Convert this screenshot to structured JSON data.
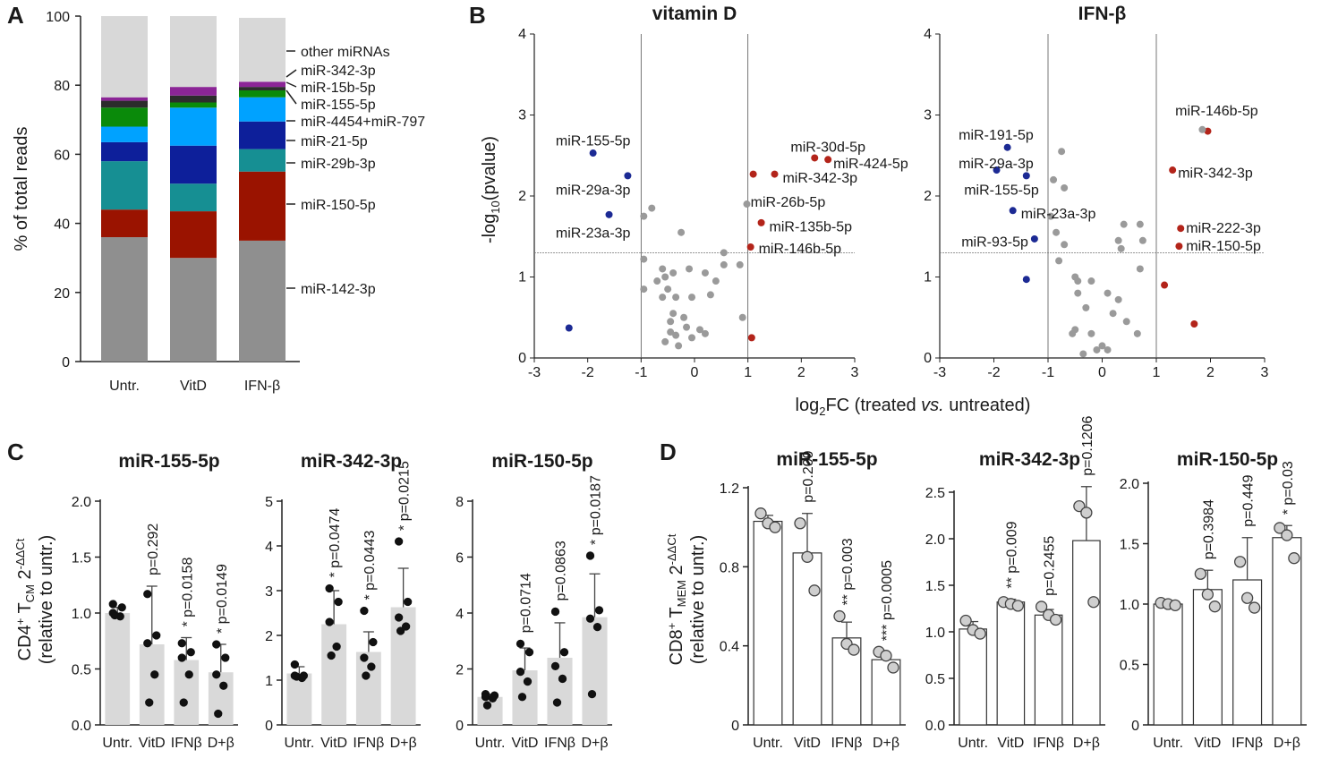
{
  "panel_letters": [
    "A",
    "B",
    "C",
    "D"
  ],
  "colors": {
    "other": "#d8d8d8",
    "mir342": "#8b2596",
    "mir15b": "#2c2c2c",
    "mir155": "#0a8a0a",
    "mir4454": "#00a2ff",
    "mir21": "#0d1f9a",
    "mir29b": "#168f93",
    "mir150": "#9a1300",
    "mir142": "#8f8f8f",
    "red_dot": "#b3241a",
    "blue_dot": "#1c2a94",
    "grey_dot": "#9a9a9a",
    "bar_c": "#d9d9d9",
    "bar_d": "#ffffff"
  },
  "chart_data": [
    {
      "id": "A",
      "type": "bar",
      "stacked": true,
      "ylabel": "% of total reads",
      "ylim": [
        0,
        100
      ],
      "yticks": [
        0,
        20,
        40,
        60,
        80,
        100
      ],
      "categories": [
        "Untr.",
        "VitD",
        "IFN-β"
      ],
      "series": [
        {
          "name": "miR-142-3p",
          "color_key": "mir142",
          "values": [
            36,
            30,
            35
          ]
        },
        {
          "name": "miR-150-5p",
          "color_key": "mir150",
          "values": [
            8,
            13.5,
            20
          ]
        },
        {
          "name": "miR-29b-3p",
          "color_key": "mir29b",
          "values": [
            14,
            8,
            6.5
          ]
        },
        {
          "name": "miR-21-5p",
          "color_key": "mir21",
          "values": [
            5.5,
            11,
            8
          ]
        },
        {
          "name": "miR-4454+miR-797",
          "color_key": "mir4454",
          "values": [
            4.5,
            11,
            7
          ]
        },
        {
          "name": "miR-155-5p",
          "color_key": "mir155",
          "values": [
            5.5,
            1.5,
            2
          ]
        },
        {
          "name": "miR-15b-5p",
          "color_key": "mir15b",
          "values": [
            2,
            2,
            1
          ]
        },
        {
          "name": "miR-342-3p",
          "color_key": "mir342",
          "values": [
            1,
            2.5,
            1.5
          ]
        },
        {
          "name": "other miRNAs",
          "color_key": "other",
          "values": [
            23.5,
            20.5,
            18.5
          ]
        }
      ],
      "legend_order": [
        "other miRNAs",
        "miR-342-3p",
        "miR-15b-5p",
        "miR-155-5p",
        "miR-4454+miR-797",
        "miR-21-5p",
        "miR-29b-3p",
        "miR-150-5p",
        "miR-142-3p"
      ]
    },
    {
      "id": "B1",
      "type": "scatter",
      "title": "vitamin D",
      "xlabel_parts": [
        "log",
        "2",
        "FC (treated ",
        "vs.",
        " untreated)"
      ],
      "ylabel_parts": [
        "-log",
        "10",
        "(pvalue)"
      ],
      "xlim": [
        -3,
        3
      ],
      "ylim": [
        0,
        4
      ],
      "xticks": [
        -3,
        -2,
        -1,
        0,
        1,
        2,
        3
      ],
      "yticks": [
        0,
        1,
        2,
        3,
        4
      ],
      "vlines": [
        -1,
        1
      ],
      "hline": 1.3,
      "points": [
        {
          "x": -1.9,
          "y": 2.53,
          "c": "blue"
        },
        {
          "x": -1.25,
          "y": 2.25,
          "c": "blue"
        },
        {
          "x": -1.6,
          "y": 1.77,
          "c": "blue"
        },
        {
          "x": -2.35,
          "y": 0.37,
          "c": "blue"
        },
        {
          "x": 2.25,
          "y": 2.47,
          "c": "red"
        },
        {
          "x": 2.5,
          "y": 2.45,
          "c": "red"
        },
        {
          "x": 1.5,
          "y": 2.27,
          "c": "red"
        },
        {
          "x": 1.1,
          "y": 2.27,
          "c": "red"
        },
        {
          "x": 1.25,
          "y": 1.67,
          "c": "red"
        },
        {
          "x": 1.05,
          "y": 1.37,
          "c": "red"
        },
        {
          "x": 1.07,
          "y": 0.25,
          "c": "red"
        },
        {
          "x": 0.98,
          "y": 1.9,
          "c": "grey"
        },
        {
          "x": -0.8,
          "y": 1.85,
          "c": "grey"
        },
        {
          "x": -0.95,
          "y": 1.75,
          "c": "grey"
        },
        {
          "x": -0.25,
          "y": 1.55,
          "c": "grey"
        },
        {
          "x": -0.95,
          "y": 1.22,
          "c": "grey"
        },
        {
          "x": -0.6,
          "y": 1.1,
          "c": "grey"
        },
        {
          "x": -0.55,
          "y": 1.0,
          "c": "grey"
        },
        {
          "x": -0.7,
          "y": 0.95,
          "c": "grey"
        },
        {
          "x": -0.4,
          "y": 1.05,
          "c": "grey"
        },
        {
          "x": -0.1,
          "y": 1.1,
          "c": "grey"
        },
        {
          "x": 0.2,
          "y": 1.05,
          "c": "grey"
        },
        {
          "x": 0.55,
          "y": 1.3,
          "c": "grey"
        },
        {
          "x": 0.55,
          "y": 1.15,
          "c": "grey"
        },
        {
          "x": 0.85,
          "y": 1.15,
          "c": "grey"
        },
        {
          "x": 0.4,
          "y": 0.95,
          "c": "grey"
        },
        {
          "x": -0.5,
          "y": 0.85,
          "c": "grey"
        },
        {
          "x": -0.95,
          "y": 0.85,
          "c": "grey"
        },
        {
          "x": -0.35,
          "y": 0.75,
          "c": "grey"
        },
        {
          "x": -0.05,
          "y": 0.75,
          "c": "grey"
        },
        {
          "x": 0.3,
          "y": 0.78,
          "c": "grey"
        },
        {
          "x": -0.6,
          "y": 0.75,
          "c": "grey"
        },
        {
          "x": -0.4,
          "y": 0.55,
          "c": "grey"
        },
        {
          "x": -0.2,
          "y": 0.5,
          "c": "grey"
        },
        {
          "x": -0.45,
          "y": 0.45,
          "c": "grey"
        },
        {
          "x": -0.15,
          "y": 0.38,
          "c": "grey"
        },
        {
          "x": 0.1,
          "y": 0.35,
          "c": "grey"
        },
        {
          "x": 0.2,
          "y": 0.3,
          "c": "grey"
        },
        {
          "x": -0.35,
          "y": 0.28,
          "c": "grey"
        },
        {
          "x": -0.05,
          "y": 0.25,
          "c": "grey"
        },
        {
          "x": -0.3,
          "y": 0.15,
          "c": "grey"
        },
        {
          "x": -0.55,
          "y": 0.2,
          "c": "grey"
        },
        {
          "x": 0.9,
          "y": 0.5,
          "c": "grey"
        },
        {
          "x": -0.45,
          "y": 0.32,
          "c": "grey"
        }
      ],
      "annotations": [
        {
          "text": "miR-155-5p",
          "x": -2.6,
          "y": 2.68
        },
        {
          "text": "miR-29a-3p",
          "x": -2.6,
          "y": 2.07
        },
        {
          "text": "miR-23a-3p",
          "x": -2.6,
          "y": 1.54
        },
        {
          "text": "miR-30d-5p",
          "x": 1.8,
          "y": 2.6
        },
        {
          "text": "miR-424-5p",
          "x": 2.6,
          "y": 2.4
        },
        {
          "text": "miR-342-3p",
          "x": 1.65,
          "y": 2.22
        },
        {
          "text": "miR-26b-5p",
          "x": 1.05,
          "y": 1.92
        },
        {
          "text": "miR-135b-5p",
          "x": 1.4,
          "y": 1.62
        },
        {
          "text": "miR-146b-5p",
          "x": 1.2,
          "y": 1.35
        }
      ]
    },
    {
      "id": "B2",
      "type": "scatter",
      "title": "IFN-β",
      "xlim": [
        -3,
        3
      ],
      "ylim": [
        0,
        4
      ],
      "xticks": [
        -3,
        -2,
        -1,
        0,
        1,
        2,
        3
      ],
      "yticks": [
        0,
        1,
        2,
        3,
        4
      ],
      "vlines": [
        -1,
        1
      ],
      "hline": 1.3,
      "points": [
        {
          "x": -1.75,
          "y": 2.6,
          "c": "blue"
        },
        {
          "x": -1.95,
          "y": 2.32,
          "c": "blue"
        },
        {
          "x": -1.4,
          "y": 2.25,
          "c": "blue"
        },
        {
          "x": -1.65,
          "y": 1.82,
          "c": "blue"
        },
        {
          "x": -1.25,
          "y": 1.47,
          "c": "blue"
        },
        {
          "x": -1.4,
          "y": 0.97,
          "c": "blue"
        },
        {
          "x": 1.95,
          "y": 2.8,
          "c": "red"
        },
        {
          "x": 1.3,
          "y": 2.32,
          "c": "red"
        },
        {
          "x": 1.45,
          "y": 1.6,
          "c": "red"
        },
        {
          "x": 1.42,
          "y": 1.38,
          "c": "red"
        },
        {
          "x": 1.15,
          "y": 0.9,
          "c": "red"
        },
        {
          "x": 1.7,
          "y": 0.42,
          "c": "red"
        },
        {
          "x": 1.85,
          "y": 2.82,
          "c": "grey"
        },
        {
          "x": -0.75,
          "y": 2.55,
          "c": "grey"
        },
        {
          "x": -0.9,
          "y": 2.2,
          "c": "grey"
        },
        {
          "x": -0.7,
          "y": 2.1,
          "c": "grey"
        },
        {
          "x": -0.95,
          "y": 1.75,
          "c": "grey"
        },
        {
          "x": -0.85,
          "y": 1.55,
          "c": "grey"
        },
        {
          "x": -0.7,
          "y": 1.4,
          "c": "grey"
        },
        {
          "x": -0.8,
          "y": 1.2,
          "c": "grey"
        },
        {
          "x": 0.4,
          "y": 1.65,
          "c": "grey"
        },
        {
          "x": 0.7,
          "y": 1.65,
          "c": "grey"
        },
        {
          "x": 0.75,
          "y": 1.45,
          "c": "grey"
        },
        {
          "x": 0.3,
          "y": 1.45,
          "c": "grey"
        },
        {
          "x": 0.35,
          "y": 1.35,
          "c": "grey"
        },
        {
          "x": 0.7,
          "y": 1.1,
          "c": "grey"
        },
        {
          "x": -0.5,
          "y": 1.0,
          "c": "grey"
        },
        {
          "x": -0.45,
          "y": 0.95,
          "c": "grey"
        },
        {
          "x": -0.45,
          "y": 0.8,
          "c": "grey"
        },
        {
          "x": -0.2,
          "y": 0.95,
          "c": "grey"
        },
        {
          "x": -0.3,
          "y": 0.62,
          "c": "grey"
        },
        {
          "x": 0.1,
          "y": 0.8,
          "c": "grey"
        },
        {
          "x": 0.3,
          "y": 0.72,
          "c": "grey"
        },
        {
          "x": 0.2,
          "y": 0.55,
          "c": "grey"
        },
        {
          "x": 0.45,
          "y": 0.45,
          "c": "grey"
        },
        {
          "x": -0.5,
          "y": 0.35,
          "c": "grey"
        },
        {
          "x": -0.55,
          "y": 0.3,
          "c": "grey"
        },
        {
          "x": -0.2,
          "y": 0.3,
          "c": "grey"
        },
        {
          "x": 0.0,
          "y": 0.15,
          "c": "grey"
        },
        {
          "x": 0.1,
          "y": 0.1,
          "c": "grey"
        },
        {
          "x": -0.1,
          "y": 0.1,
          "c": "grey"
        },
        {
          "x": -0.35,
          "y": 0.05,
          "c": "grey"
        },
        {
          "x": 0.65,
          "y": 0.3,
          "c": "grey"
        }
      ],
      "annotations": [
        {
          "text": "miR-191-5p",
          "x": -2.65,
          "y": 2.75
        },
        {
          "text": "miR-29a-3p",
          "x": -2.65,
          "y": 2.4
        },
        {
          "text": "miR-155-5p",
          "x": -2.55,
          "y": 2.07
        },
        {
          "text": "miR-23a-3p",
          "x": -1.5,
          "y": 1.78
        },
        {
          "text": "miR-93-5p",
          "x": -2.6,
          "y": 1.43
        },
        {
          "text": "miR-146b-5p",
          "x": 1.35,
          "y": 3.05
        },
        {
          "text": "miR-342-3p",
          "x": 1.4,
          "y": 2.28
        },
        {
          "text": "miR-222-3p",
          "x": 1.55,
          "y": 1.6
        },
        {
          "text": "miR-150-5p",
          "x": 1.55,
          "y": 1.38
        }
      ]
    },
    {
      "id": "C1",
      "type": "bar",
      "title": "miR-155-5p",
      "categories": [
        "Untr.",
        "VitD",
        "IFNβ",
        "D+β"
      ],
      "values": [
        1.0,
        0.72,
        0.58,
        0.47
      ],
      "errors": [
        0.05,
        0.52,
        0.2,
        0.25
      ],
      "ylim": [
        0,
        2.0
      ],
      "yticks": [
        0.0,
        0.5,
        1.0,
        1.5,
        2.0
      ],
      "tick_decimals": 1,
      "points": [
        [
          1.08,
          1.05,
          1.0,
          0.97,
          0.98
        ],
        [
          1.17,
          0.8,
          0.73,
          0.45,
          0.2
        ],
        [
          0.73,
          0.65,
          0.6,
          0.45,
          0.2
        ],
        [
          0.72,
          0.6,
          0.45,
          0.35,
          0.1
        ]
      ],
      "pvalues": [
        "",
        "p=0.292",
        "* p=0.0158",
        "* p=0.0149"
      ]
    },
    {
      "id": "C2",
      "type": "bar",
      "title": "miR-342-3p",
      "categories": [
        "Untr.",
        "VitD",
        "IFNβ",
        "D+β"
      ],
      "values": [
        1.15,
        2.25,
        1.63,
        2.63
      ],
      "errors": [
        0.15,
        0.75,
        0.45,
        0.87
      ],
      "ylim": [
        0,
        5
      ],
      "yticks": [
        0,
        1,
        2,
        3,
        4,
        5
      ],
      "tick_decimals": 0,
      "points": [
        [
          1.35,
          1.1,
          1.1,
          1.05,
          1.08
        ],
        [
          3.05,
          2.75,
          2.3,
          1.75,
          1.55
        ],
        [
          2.55,
          1.85,
          1.5,
          1.3,
          1.1
        ],
        [
          4.1,
          2.75,
          2.4,
          2.2,
          2.1
        ]
      ],
      "pvalues": [
        "",
        "* p=0.0474",
        "* p=0.0443",
        "* p=0.0215"
      ]
    },
    {
      "id": "C3",
      "type": "bar",
      "title": "miR-150-5p",
      "categories": [
        "Untr.",
        "VitD",
        "IFNβ",
        "D+β"
      ],
      "values": [
        1.0,
        1.95,
        2.4,
        3.85
      ],
      "errors": [
        0.1,
        0.8,
        1.25,
        1.55
      ],
      "ylim": [
        0,
        8
      ],
      "yticks": [
        0,
        2,
        4,
        6,
        8
      ],
      "tick_decimals": 0,
      "points": [
        [
          1.1,
          1.05,
          1.0,
          0.95,
          0.7
        ],
        [
          2.9,
          2.6,
          1.9,
          1.55,
          1.0
        ],
        [
          4.05,
          2.6,
          2.1,
          1.65,
          0.8
        ],
        [
          6.05,
          4.1,
          3.8,
          3.5,
          1.1
        ]
      ],
      "pvalues": [
        "",
        "p=0.0714",
        "p=0.0863",
        "* p=0.0187"
      ]
    },
    {
      "id": "D1",
      "type": "bar",
      "title": "miR-155-5p",
      "categories": [
        "Untr.",
        "VitD",
        "IFNβ",
        "D+β"
      ],
      "values": [
        1.03,
        0.87,
        0.44,
        0.33
      ],
      "errors": [
        0.03,
        0.2,
        0.08,
        0.03
      ],
      "ylim": [
        0,
        1.2
      ],
      "yticks": [
        0,
        0.4,
        0.8,
        1.2
      ],
      "tick_decimals": 1,
      "zero_label": "0",
      "points": [
        [
          1.07,
          1.02,
          1.0
        ],
        [
          1.02,
          0.85,
          0.68
        ],
        [
          0.55,
          0.41,
          0.38
        ],
        [
          0.37,
          0.35,
          0.29
        ]
      ],
      "pvalues": [
        "",
        "p=0.209",
        "** p=0.003",
        "*** p=0.0005"
      ]
    },
    {
      "id": "D2",
      "type": "bar",
      "title": "miR-342-3p",
      "categories": [
        "Untr.",
        "VitD",
        "IFNβ",
        "D+β"
      ],
      "values": [
        1.03,
        1.32,
        1.18,
        1.98
      ],
      "errors": [
        0.08,
        0.03,
        0.06,
        0.58
      ],
      "ylim": [
        0,
        2.5
      ],
      "yticks": [
        0.0,
        0.5,
        1.0,
        1.5,
        2.0,
        2.5
      ],
      "tick_decimals": 1,
      "points": [
        [
          1.12,
          1.02,
          0.98
        ],
        [
          1.32,
          1.3,
          1.28
        ],
        [
          1.27,
          1.18,
          1.13
        ],
        [
          2.35,
          2.28,
          1.32
        ]
      ],
      "pvalues": [
        "",
        "** p=0.009",
        "p=0.2455",
        "p=0.1206"
      ]
    },
    {
      "id": "D3",
      "type": "bar",
      "title": "miR-150-5p",
      "categories": [
        "Untr.",
        "VitD",
        "IFNβ",
        "D+β"
      ],
      "values": [
        1.0,
        1.12,
        1.2,
        1.55
      ],
      "errors": [
        0.02,
        0.16,
        0.35,
        0.1
      ],
      "ylim": [
        0,
        2.0
      ],
      "yticks": [
        0,
        0.5,
        1.0,
        1.5,
        2.0
      ],
      "tick_decimals": 1,
      "zero_label": "0",
      "points": [
        [
          1.01,
          1.0,
          0.99
        ],
        [
          1.25,
          1.08,
          0.98
        ],
        [
          1.35,
          1.05,
          0.97
        ],
        [
          1.63,
          1.57,
          1.38
        ]
      ],
      "pvalues": [
        "",
        "p=0.3984",
        "p=0.449",
        "* p=0.03"
      ]
    }
  ],
  "axis_labels": {
    "c_line1_a": "CD4",
    "c_line1_sup": "+",
    "c_line1_b": " T",
    "c_line1_sub": "CM",
    "c_line1_c": " 2",
    "c_line1_sup2": "-ΔΔCt",
    "c_line2": "(relative to untr.)",
    "d_line1_a": "CD8",
    "d_line1_sup": "+",
    "d_line1_b": " T",
    "d_line1_sub": "MEM",
    "d_line1_c": " 2",
    "d_line1_sup2": "-ΔΔCt",
    "d_line2": "(relative to untr.)"
  }
}
